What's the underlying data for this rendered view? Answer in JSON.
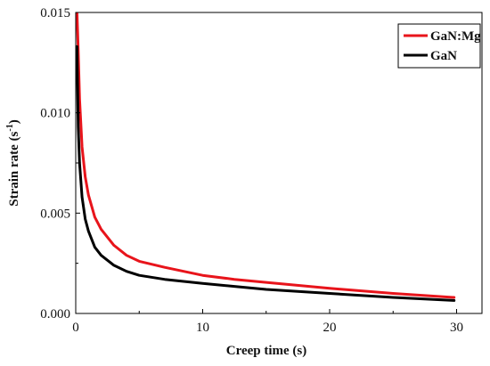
{
  "chart_data": {
    "type": "line",
    "title": "",
    "xlabel": "Creep time (s)",
    "ylabel_main": "Strain rate (s",
    "ylabel_sup": "-1",
    "ylabel_close": ")",
    "xlim": [
      0,
      32
    ],
    "ylim": [
      0,
      0.015
    ],
    "xticks": [
      0,
      10,
      20,
      30
    ],
    "xtick_labels": [
      "0",
      "10",
      "20",
      "30"
    ],
    "yticks": [
      0,
      0.005,
      0.01,
      0.015
    ],
    "ytick_labels": [
      "0.000",
      "0.005",
      "0.010",
      "0.015"
    ],
    "grid": false,
    "legend_position": "top-right",
    "series": [
      {
        "name": "GaN:Mg",
        "color": "#e8141b",
        "x": [
          0.1,
          0.2,
          0.3,
          0.5,
          0.75,
          1,
          1.5,
          2,
          3,
          4,
          5,
          7,
          10,
          12.5,
          15,
          20,
          25,
          29.8
        ],
        "y": [
          0.015,
          0.0131,
          0.0107,
          0.0083,
          0.0068,
          0.0059,
          0.0048,
          0.0042,
          0.0034,
          0.0029,
          0.0026,
          0.0023,
          0.0019,
          0.0017,
          0.00155,
          0.00125,
          0.001,
          0.0008
        ]
      },
      {
        "name": "GaN",
        "color": "#000000",
        "x": [
          0.1,
          0.2,
          0.3,
          0.5,
          0.75,
          1,
          1.5,
          2,
          3,
          4,
          5,
          7,
          10,
          12.5,
          15,
          20,
          25,
          29.8
        ],
        "y": [
          0.0133,
          0.0093,
          0.0075,
          0.0058,
          0.0047,
          0.0041,
          0.0033,
          0.0029,
          0.0024,
          0.0021,
          0.0019,
          0.0017,
          0.0015,
          0.00135,
          0.0012,
          0.001,
          0.0008,
          0.00065
        ]
      }
    ]
  }
}
